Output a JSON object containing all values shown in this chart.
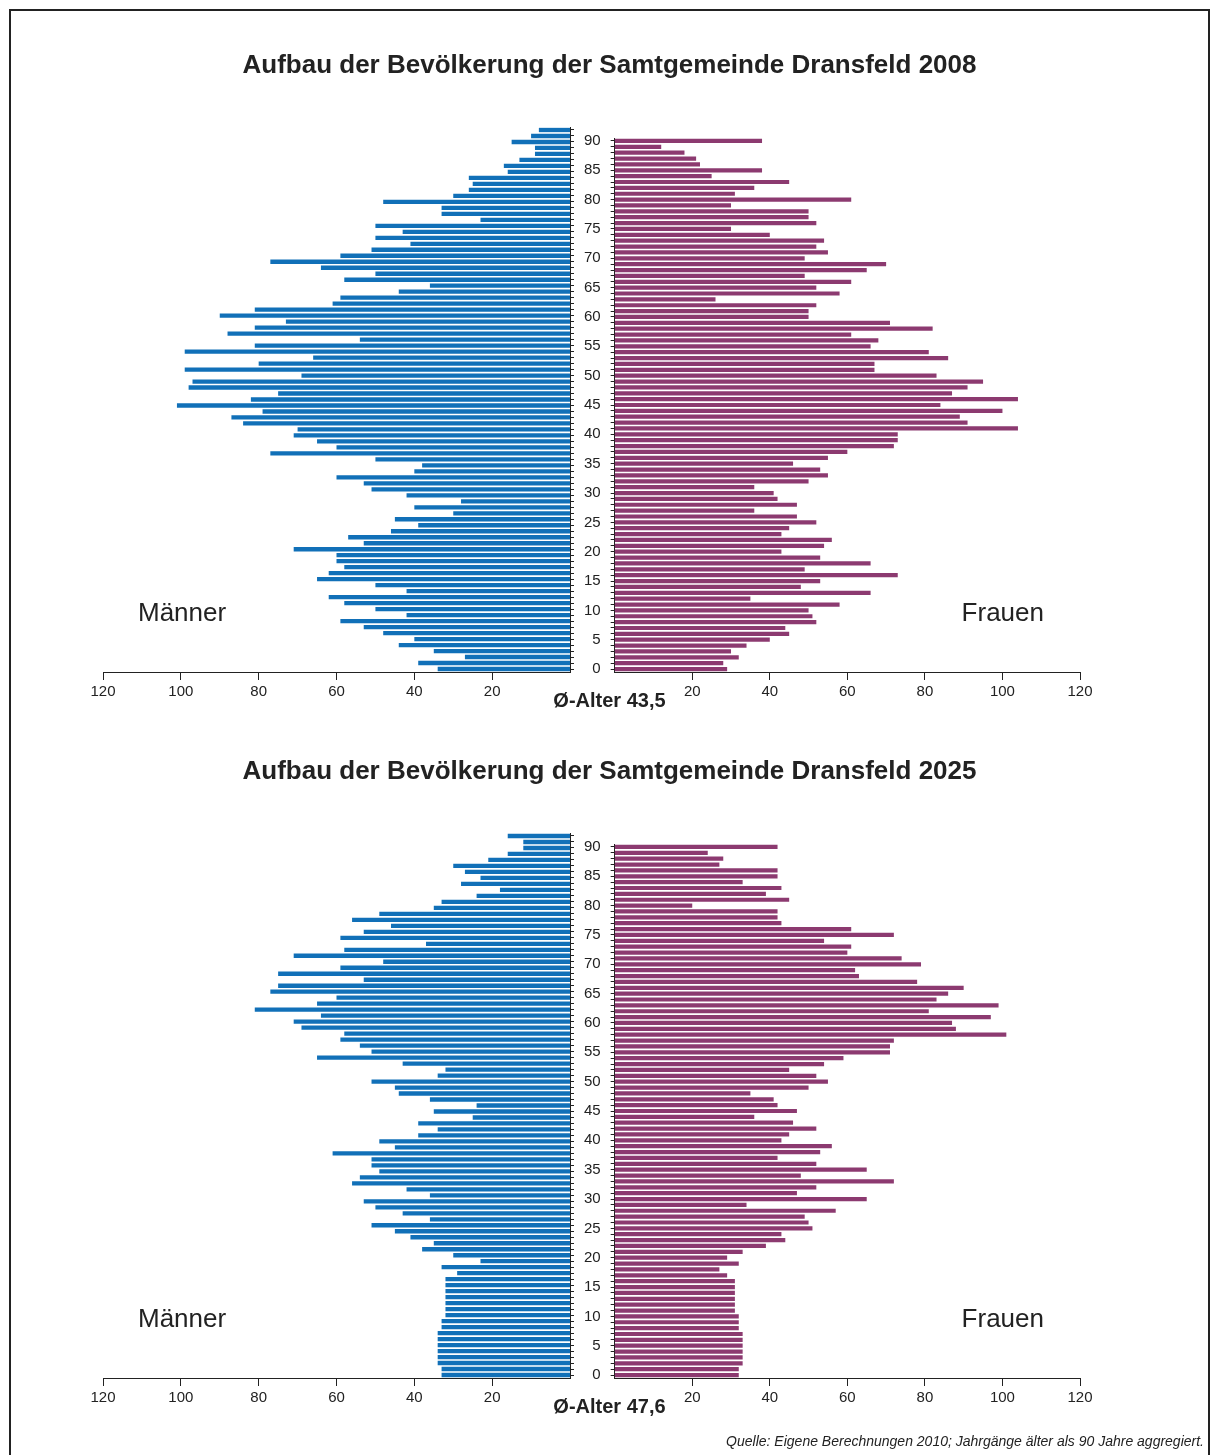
{
  "chart_data": [
    {
      "type": "bar",
      "orientation": "horizontal",
      "title": "Aufbau der Bevölkerung der Samtgemeinde Dransfeld 2008",
      "xlabel": "Ø-Alter 43,5",
      "tick_labels": "x",
      "categories": [
        null,
        null,
        null,
        null,
        null,
        null,
        null,
        null,
        null,
        null,
        null,
        null,
        null,
        null,
        null,
        null,
        null,
        null,
        null,
        null,
        null,
        null,
        null,
        null,
        null,
        null,
        null,
        null,
        null,
        null,
        null,
        null,
        null,
        null,
        null,
        null,
        null,
        null,
        null,
        null,
        null,
        null,
        null,
        null,
        null,
        null,
        null,
        null,
        null,
        null,
        null,
        null,
        null,
        null,
        null,
        null,
        null,
        null,
        null,
        null,
        null,
        null,
        null,
        null,
        null,
        null,
        null,
        null,
        null,
        null,
        null,
        null,
        null,
        null,
        null,
        null,
        null,
        null,
        null,
        null,
        null,
        null,
        null,
        null,
        null,
        null,
        null,
        null,
        null,
        null,
        null
      ],
      "xlim": [
        120,
        0
      ],
      "xticks": [
        120,
        100,
        80,
        60,
        40,
        20
      ],
      "series": [
        {
          "name": "Männer",
          "color": "#1170b8",
          "values": [
            8,
            10,
            15,
            9,
            9,
            13,
            17,
            16,
            26,
            25,
            26,
            30,
            48,
            33,
            33,
            23,
            50,
            43,
            50,
            41,
            51,
            59,
            77,
            64,
            50,
            58,
            36,
            44,
            59,
            61,
            81,
            90,
            73,
            81,
            88,
            54,
            81,
            99,
            66,
            80,
            99,
            69,
            97,
            98,
            75,
            82,
            101,
            79,
            87,
            84,
            70,
            71,
            65,
            60,
            77,
            50,
            38,
            40,
            60,
            53,
            51,
            42,
            28,
            40,
            30,
            45,
            39,
            46,
            57,
            53,
            71,
            60,
            60,
            58,
            62,
            65,
            50,
            42,
            62,
            58,
            50,
            42,
            59,
            53,
            48,
            40,
            44,
            35,
            27,
            39,
            34
          ]
        }
      ]
    },
    {
      "type": "bar",
      "orientation": "horizontal",
      "categories": [
        "90",
        null,
        null,
        null,
        null,
        "85",
        null,
        null,
        null,
        null,
        "80",
        null,
        null,
        null,
        null,
        "75",
        null,
        null,
        null,
        null,
        "70",
        null,
        null,
        null,
        null,
        "65",
        null,
        null,
        null,
        null,
        "60",
        null,
        null,
        null,
        null,
        "55",
        null,
        null,
        null,
        null,
        "50",
        null,
        null,
        null,
        null,
        "45",
        null,
        null,
        null,
        null,
        "40",
        null,
        null,
        null,
        null,
        "35",
        null,
        null,
        null,
        null,
        "30",
        null,
        null,
        null,
        null,
        "25",
        null,
        null,
        null,
        null,
        "20",
        null,
        null,
        null,
        null,
        "15",
        null,
        null,
        null,
        null,
        "10",
        null,
        null,
        null,
        null,
        "5",
        null,
        null,
        null,
        null,
        "0"
      ],
      "xlim": [
        0,
        120
      ],
      "xticks": [
        20,
        40,
        60,
        80,
        100,
        120
      ],
      "series": [
        {
          "name": "Frauen",
          "color": "#8c3a70",
          "values": [
            38,
            12,
            18,
            21,
            22,
            38,
            25,
            45,
            36,
            31,
            61,
            30,
            50,
            50,
            52,
            30,
            40,
            54,
            52,
            55,
            49,
            70,
            65,
            49,
            61,
            52,
            58,
            26,
            52,
            50,
            50,
            71,
            82,
            61,
            68,
            66,
            81,
            86,
            67,
            67,
            83,
            95,
            91,
            87,
            104,
            84,
            100,
            89,
            91,
            104,
            73,
            73,
            72,
            60,
            55,
            46,
            53,
            55,
            50,
            36,
            41,
            42,
            47,
            36,
            47,
            52,
            45,
            43,
            56,
            54,
            43,
            53,
            66,
            49,
            73,
            53,
            48,
            66,
            35,
            58,
            50,
            51,
            52,
            44,
            45,
            40,
            34,
            30,
            32,
            28,
            29
          ]
        }
      ]
    },
    {
      "type": "bar",
      "orientation": "horizontal",
      "title": "Aufbau der Bevölkerung der Samtgemeinde Dransfeld 2025",
      "xlabel": "Ø-Alter 47,6",
      "tick_labels": "x",
      "categories": [
        null,
        null,
        null,
        null,
        null,
        null,
        null,
        null,
        null,
        null,
        null,
        null,
        null,
        null,
        null,
        null,
        null,
        null,
        null,
        null,
        null,
        null,
        null,
        null,
        null,
        null,
        null,
        null,
        null,
        null,
        null,
        null,
        null,
        null,
        null,
        null,
        null,
        null,
        null,
        null,
        null,
        null,
        null,
        null,
        null,
        null,
        null,
        null,
        null,
        null,
        null,
        null,
        null,
        null,
        null,
        null,
        null,
        null,
        null,
        null,
        null,
        null,
        null,
        null,
        null,
        null,
        null,
        null,
        null,
        null,
        null,
        null,
        null,
        null,
        null,
        null,
        null,
        null,
        null,
        null,
        null,
        null,
        null,
        null,
        null,
        null,
        null,
        null,
        null,
        null,
        null
      ],
      "xlim": [
        120,
        0
      ],
      "xticks": [
        120,
        100,
        80,
        60,
        40,
        20
      ],
      "series": [
        {
          "name": "Männer",
          "color": "#1170b8",
          "values": [
            16,
            12,
            12,
            16,
            21,
            30,
            27,
            23,
            28,
            18,
            24,
            33,
            35,
            49,
            56,
            46,
            53,
            59,
            37,
            58,
            71,
            48,
            59,
            75,
            53,
            75,
            77,
            60,
            65,
            81,
            64,
            71,
            69,
            58,
            59,
            54,
            51,
            65,
            43,
            32,
            34,
            51,
            45,
            44,
            36,
            24,
            35,
            25,
            39,
            34,
            39,
            49,
            45,
            61,
            51,
            51,
            49,
            54,
            56,
            42,
            36,
            53,
            50,
            43,
            36,
            51,
            45,
            41,
            35,
            38,
            30,
            23,
            33,
            29,
            32,
            32,
            32,
            32,
            32,
            32,
            32,
            33,
            33,
            34,
            34,
            34,
            34,
            34,
            34,
            33,
            33
          ]
        }
      ]
    },
    {
      "type": "bar",
      "orientation": "horizontal",
      "categories": [
        "90",
        null,
        null,
        null,
        null,
        "85",
        null,
        null,
        null,
        null,
        "80",
        null,
        null,
        null,
        null,
        "75",
        null,
        null,
        null,
        null,
        "70",
        null,
        null,
        null,
        null,
        "65",
        null,
        null,
        null,
        null,
        "60",
        null,
        null,
        null,
        null,
        "55",
        null,
        null,
        null,
        null,
        "50",
        null,
        null,
        null,
        null,
        "45",
        null,
        null,
        null,
        null,
        "40",
        null,
        null,
        null,
        null,
        "35",
        null,
        null,
        null,
        null,
        "30",
        null,
        null,
        null,
        null,
        "25",
        null,
        null,
        null,
        null,
        "20",
        null,
        null,
        null,
        null,
        "15",
        null,
        null,
        null,
        null,
        "10",
        null,
        null,
        null,
        null,
        "5",
        null,
        null,
        null,
        null,
        "0"
      ],
      "xlim": [
        0,
        120
      ],
      "xticks": [
        20,
        40,
        60,
        80,
        100,
        120
      ],
      "series": [
        {
          "name": "Frauen",
          "color": "#8c3a70",
          "values": [
            42,
            24,
            28,
            27,
            42,
            42,
            33,
            43,
            39,
            45,
            20,
            42,
            42,
            43,
            61,
            72,
            54,
            61,
            60,
            74,
            79,
            62,
            63,
            78,
            90,
            86,
            83,
            99,
            81,
            97,
            87,
            88,
            101,
            72,
            71,
            71,
            59,
            54,
            45,
            52,
            55,
            50,
            35,
            41,
            42,
            47,
            36,
            46,
            52,
            45,
            43,
            56,
            53,
            42,
            52,
            65,
            48,
            72,
            52,
            47,
            65,
            34,
            57,
            49,
            50,
            51,
            43,
            44,
            39,
            33,
            29,
            32,
            27,
            29,
            31,
            31,
            31,
            31,
            31,
            31,
            32,
            32,
            32,
            33,
            33,
            33,
            33,
            33,
            33,
            32,
            32
          ]
        }
      ],
      "annotations": [
        "Quelle: Eigene Berechnungen 2010; Jahrgänge älter als 90 Jahre aggregiert."
      ]
    }
  ]
}
